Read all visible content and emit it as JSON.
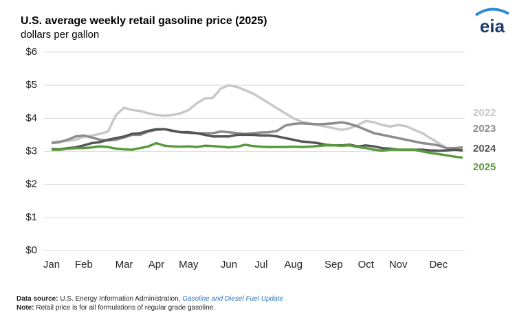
{
  "chart_data": {
    "type": "line",
    "title": "U.S. average weekly retail gasoline price (2025)",
    "subtitle": "dollars per gallon",
    "logo": "eia",
    "categories": [
      "Jan",
      null,
      null,
      null,
      "Feb",
      null,
      null,
      null,
      null,
      "Mar",
      null,
      null,
      null,
      "Apr",
      null,
      null,
      null,
      "May",
      null,
      null,
      null,
      null,
      "Jun",
      null,
      null,
      null,
      "Jul",
      null,
      null,
      null,
      "Aug",
      null,
      null,
      null,
      null,
      "Sep",
      null,
      null,
      null,
      "Oct",
      null,
      null,
      null,
      "Nov",
      null,
      null,
      null,
      null,
      "Dec",
      null,
      null,
      null
    ],
    "series": [
      {
        "name": "2022",
        "color": "#c8c8c8",
        "values": [
          3.28,
          3.3,
          3.32,
          3.35,
          3.44,
          3.48,
          3.53,
          3.6,
          4.1,
          4.32,
          4.25,
          4.22,
          4.15,
          4.1,
          4.08,
          4.1,
          4.15,
          4.25,
          4.45,
          4.6,
          4.62,
          4.9,
          5.0,
          4.95,
          4.85,
          4.75,
          4.6,
          4.45,
          4.3,
          4.15,
          4.0,
          3.9,
          3.85,
          3.8,
          3.75,
          3.7,
          3.65,
          3.7,
          3.8,
          3.92,
          3.88,
          3.8,
          3.75,
          3.8,
          3.76,
          3.65,
          3.55,
          3.4,
          3.25,
          3.1,
          3.05,
          3.05
        ]
      },
      {
        "name": "2023",
        "color": "#8c8c8c",
        "values": [
          3.25,
          3.28,
          3.35,
          3.45,
          3.48,
          3.42,
          3.35,
          3.33,
          3.35,
          3.42,
          3.5,
          3.5,
          3.6,
          3.65,
          3.67,
          3.63,
          3.58,
          3.56,
          3.55,
          3.55,
          3.55,
          3.6,
          3.58,
          3.55,
          3.53,
          3.55,
          3.57,
          3.58,
          3.62,
          3.78,
          3.83,
          3.85,
          3.83,
          3.82,
          3.83,
          3.85,
          3.88,
          3.83,
          3.75,
          3.65,
          3.55,
          3.5,
          3.45,
          3.4,
          3.35,
          3.3,
          3.25,
          3.22,
          3.18,
          3.1,
          3.1,
          3.12
        ]
      },
      {
        "name": "2024",
        "color": "#555555",
        "values": [
          3.07,
          3.06,
          3.1,
          3.12,
          3.18,
          3.25,
          3.28,
          3.35,
          3.4,
          3.45,
          3.53,
          3.55,
          3.62,
          3.67,
          3.67,
          3.62,
          3.58,
          3.58,
          3.55,
          3.5,
          3.45,
          3.45,
          3.45,
          3.5,
          3.5,
          3.5,
          3.48,
          3.48,
          3.45,
          3.4,
          3.35,
          3.3,
          3.28,
          3.25,
          3.2,
          3.18,
          3.18,
          3.2,
          3.15,
          3.18,
          3.15,
          3.1,
          3.08,
          3.05,
          3.05,
          3.05,
          3.05,
          3.03,
          3.02,
          3.03,
          3.05,
          3.03
        ]
      },
      {
        "name": "2025",
        "color": "#5b9a3c",
        "values": [
          3.05,
          3.05,
          3.08,
          3.1,
          3.1,
          3.12,
          3.15,
          3.13,
          3.08,
          3.06,
          3.05,
          3.1,
          3.15,
          3.25,
          3.17,
          3.15,
          3.14,
          3.15,
          3.13,
          3.17,
          3.16,
          3.14,
          3.12,
          3.14,
          3.2,
          3.16,
          3.14,
          3.13,
          3.13,
          3.13,
          3.14,
          3.13,
          3.14,
          3.16,
          3.18,
          3.18,
          3.17,
          3.18,
          3.13,
          3.1,
          3.05,
          3.02,
          3.05,
          3.05,
          3.05,
          3.05,
          3.0,
          2.95,
          2.92,
          2.88,
          2.84,
          2.81
        ]
      }
    ],
    "ylim": [
      0,
      6
    ],
    "yticks": [
      {
        "value": 0,
        "label": "$0"
      },
      {
        "value": 1,
        "label": "$1"
      },
      {
        "value": 2,
        "label": "$2"
      },
      {
        "value": 3,
        "label": "$3"
      },
      {
        "value": 4,
        "label": "$4"
      },
      {
        "value": 5,
        "label": "$5"
      },
      {
        "value": 6,
        "label": "$6"
      }
    ],
    "grid": true,
    "source": {
      "label": "Data source:",
      "text": "U.S. Energy Information Administration,",
      "link": "Gasoline and Diesel Fuel Update"
    },
    "note": {
      "label": "Note:",
      "text": "Retail price is for all formulations of regular grade gasoline."
    }
  }
}
